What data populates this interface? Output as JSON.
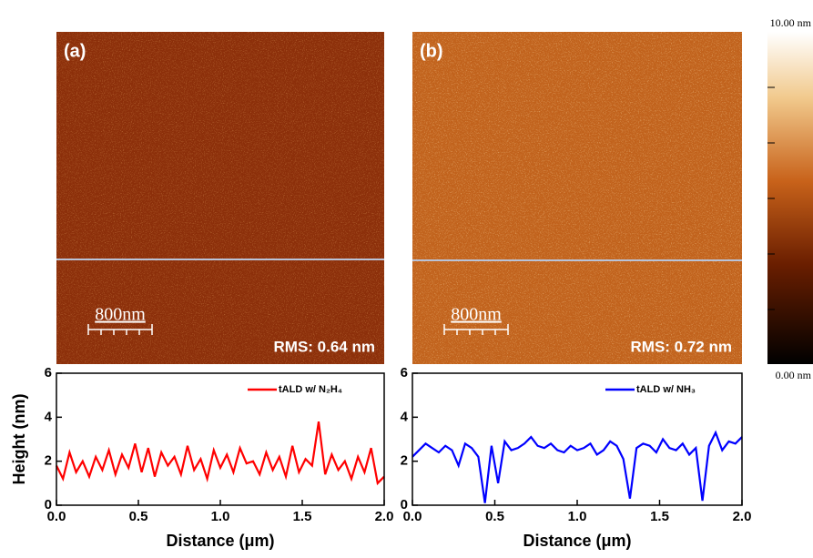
{
  "images": [
    {
      "label": "(a)",
      "scale_bar": "800nm",
      "rms": "RMS: 0.64 nm"
    },
    {
      "label": "(b)",
      "scale_bar": "800nm",
      "rms": "RMS: 0.72 nm"
    }
  ],
  "colorbar": {
    "max_label": "10.00 nm",
    "min_label": "0.00 nm"
  },
  "chart_data": [
    {
      "type": "line",
      "y_label": "Height (nm)",
      "x_label": "Distance (μm)",
      "xlim": [
        0,
        2
      ],
      "ylim": [
        0,
        6
      ],
      "xticks": [
        {
          "value": 0,
          "label": "0.0"
        },
        {
          "value": 0.5,
          "label": "0.5"
        },
        {
          "value": 1,
          "label": "1.0"
        },
        {
          "value": 1.5,
          "label": "1.5"
        },
        {
          "value": 2,
          "label": "2.0"
        }
      ],
      "yticks": [
        0,
        2,
        4,
        6
      ],
      "legend": "upper right",
      "x": [
        0,
        0.04,
        0.08,
        0.12,
        0.16,
        0.2,
        0.24,
        0.28,
        0.32,
        0.36,
        0.4,
        0.44,
        0.48,
        0.52,
        0.56,
        0.6,
        0.64,
        0.68,
        0.72,
        0.76,
        0.8,
        0.84,
        0.88,
        0.92,
        0.96,
        1,
        1.04,
        1.08,
        1.12,
        1.16,
        1.2,
        1.24,
        1.28,
        1.32,
        1.36,
        1.4,
        1.44,
        1.48,
        1.52,
        1.56,
        1.6,
        1.64,
        1.68,
        1.72,
        1.76,
        1.8,
        1.84,
        1.88,
        1.92,
        1.96,
        2
      ],
      "series": [
        {
          "name": "tALD w/ N₂H₄",
          "color": "#ff0000",
          "values": [
            1.8,
            1.2,
            2.4,
            1.5,
            2.0,
            1.3,
            2.2,
            1.6,
            2.5,
            1.4,
            2.3,
            1.7,
            2.8,
            1.5,
            2.6,
            1.3,
            2.4,
            1.8,
            2.2,
            1.4,
            2.7,
            1.6,
            2.1,
            1.2,
            2.5,
            1.7,
            2.3,
            1.5,
            2.6,
            1.9,
            2.0,
            1.4,
            2.4,
            1.6,
            2.2,
            1.3,
            2.7,
            1.5,
            2.1,
            1.8,
            3.8,
            1.4,
            2.3,
            1.6,
            2.0,
            1.2,
            2.2,
            1.5,
            2.6,
            1.0,
            1.3
          ]
        }
      ]
    },
    {
      "type": "line",
      "x_label": "Distance (μm)",
      "xlim": [
        0,
        2
      ],
      "ylim": [
        0,
        6
      ],
      "xticks": [
        {
          "value": 0,
          "label": "0.0"
        },
        {
          "value": 0.5,
          "label": "0.5"
        },
        {
          "value": 1,
          "label": "1.0"
        },
        {
          "value": 1.5,
          "label": "1.5"
        },
        {
          "value": 2,
          "label": "2.0"
        }
      ],
      "yticks": [
        0,
        2,
        4,
        6
      ],
      "legend": "upper right",
      "x": [
        0,
        0.04,
        0.08,
        0.12,
        0.16,
        0.2,
        0.24,
        0.28,
        0.32,
        0.36,
        0.4,
        0.44,
        0.48,
        0.52,
        0.56,
        0.6,
        0.64,
        0.68,
        0.72,
        0.76,
        0.8,
        0.84,
        0.88,
        0.92,
        0.96,
        1,
        1.04,
        1.08,
        1.12,
        1.16,
        1.2,
        1.24,
        1.28,
        1.32,
        1.36,
        1.4,
        1.44,
        1.48,
        1.52,
        1.56,
        1.6,
        1.64,
        1.68,
        1.72,
        1.76,
        1.8,
        1.84,
        1.88,
        1.92,
        1.96,
        2
      ],
      "series": [
        {
          "name": "tALD w/ NH₃",
          "color": "#0000ff",
          "values": [
            2.2,
            2.5,
            2.8,
            2.6,
            2.4,
            2.7,
            2.5,
            1.8,
            2.8,
            2.6,
            2.2,
            0.1,
            2.7,
            1.0,
            2.9,
            2.5,
            2.6,
            2.8,
            3.1,
            2.7,
            2.6,
            2.8,
            2.5,
            2.4,
            2.7,
            2.5,
            2.6,
            2.8,
            2.3,
            2.5,
            2.9,
            2.7,
            2.1,
            0.3,
            2.6,
            2.8,
            2.7,
            2.4,
            3.0,
            2.6,
            2.5,
            2.8,
            2.3,
            2.6,
            0.2,
            2.7,
            3.3,
            2.5,
            2.9,
            2.8,
            3.1
          ]
        }
      ]
    }
  ]
}
